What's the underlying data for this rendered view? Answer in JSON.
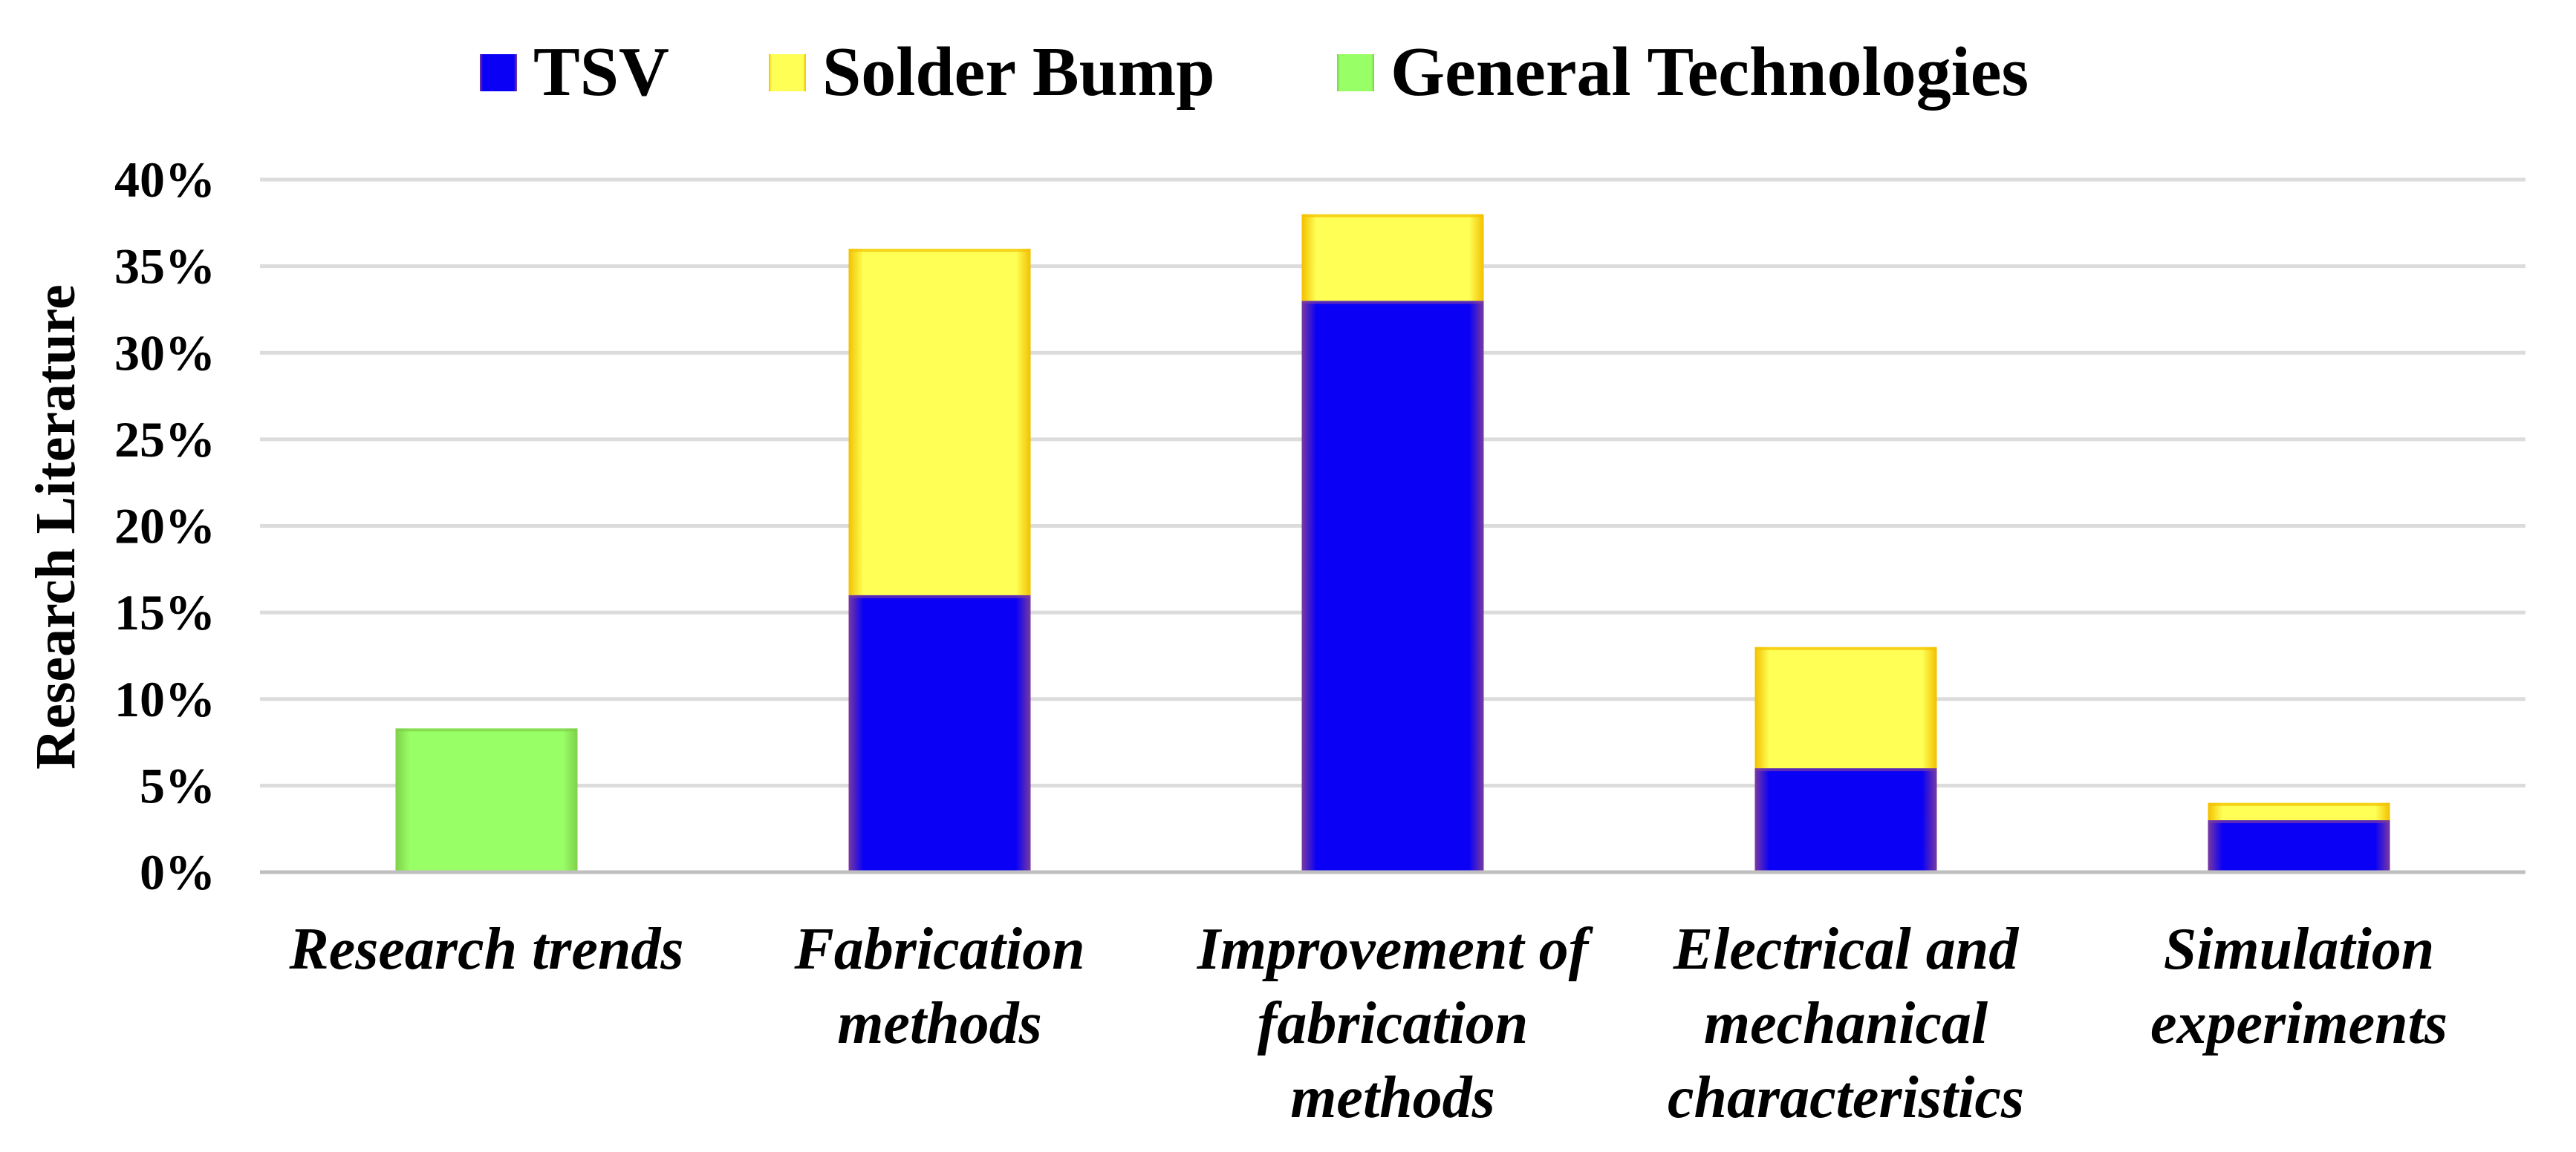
{
  "chart_data": {
    "type": "bar",
    "stacked": true,
    "title": "",
    "xlabel": "",
    "ylabel": "Research Literature",
    "ylim": [
      0,
      40
    ],
    "yticks": [
      "0%",
      "5%",
      "10%",
      "15%",
      "20%",
      "25%",
      "30%",
      "35%",
      "40%"
    ],
    "grid": true,
    "legend_position": "top",
    "categories": [
      [
        "Research trends"
      ],
      [
        "Fabrication",
        "methods"
      ],
      [
        "Improvement of",
        "fabrication",
        "methods"
      ],
      [
        "Electrical and",
        "mechanical",
        "characteristics"
      ],
      [
        "Simulation",
        "experiments"
      ]
    ],
    "series": [
      {
        "name": "TSV",
        "color": "#0a00f5",
        "edge": "#7a3aa0",
        "values": [
          0,
          16,
          33,
          6,
          3
        ]
      },
      {
        "name": "Solder Bump",
        "color": "#ffff55",
        "edge": "#f2c000",
        "values": [
          0,
          20,
          5,
          7,
          1
        ]
      },
      {
        "name": "General Technologies",
        "color": "#99ff66",
        "edge": "#7fd04a",
        "values": [
          8.3,
          0,
          0,
          0,
          0
        ]
      }
    ]
  }
}
